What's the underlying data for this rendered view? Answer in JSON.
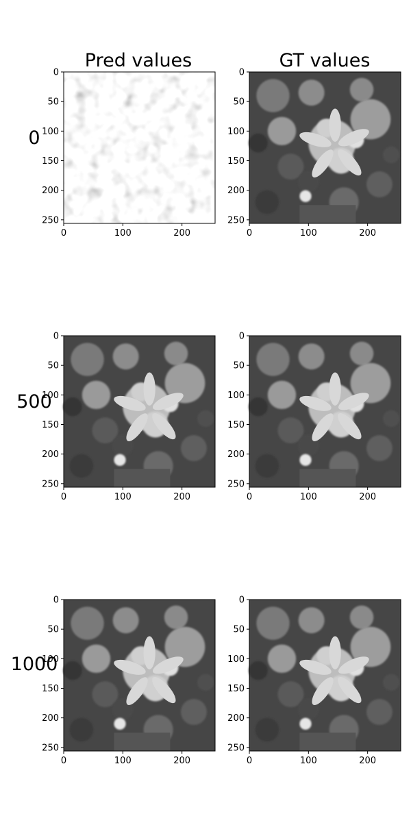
{
  "chart_data": {
    "type": "heatmap",
    "colormap": "grayscale",
    "column_titles": [
      "Pred values",
      "GT values"
    ],
    "row_labels": [
      "0",
      "500",
      "1000"
    ],
    "x_ticks": [
      "0",
      "100",
      "200"
    ],
    "y_ticks": [
      "0",
      "50",
      "100",
      "150",
      "200",
      "250"
    ],
    "xlim": [
      0,
      256
    ],
    "ylim": [
      256,
      0
    ],
    "panels": [
      {
        "row": "0",
        "column": "Pred values",
        "content": "noise"
      },
      {
        "row": "0",
        "column": "GT values",
        "content": "flower-image"
      },
      {
        "row": "500",
        "column": "Pred values",
        "content": "flower-image"
      },
      {
        "row": "500",
        "column": "GT values",
        "content": "flower-image"
      },
      {
        "row": "1000",
        "column": "Pred values",
        "content": "flower-image"
      },
      {
        "row": "1000",
        "column": "GT values",
        "content": "flower-image"
      }
    ]
  }
}
